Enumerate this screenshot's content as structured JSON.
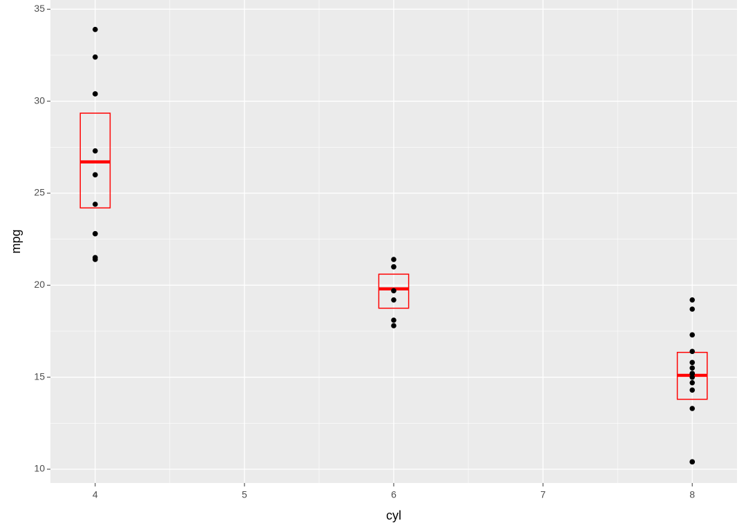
{
  "chart_data": {
    "type": "scatter",
    "x_label": "cyl",
    "y_label": "mpg",
    "xlim": [
      3.7,
      8.3
    ],
    "ylim": [
      9.25,
      35.5
    ],
    "xticks": [
      4,
      5,
      6,
      7,
      8
    ],
    "yticks": [
      10,
      15,
      20,
      25,
      30,
      35
    ],
    "xminor": [
      4.5,
      5.5,
      6.5,
      7.5
    ],
    "yminor": [
      12.5,
      17.5,
      22.5,
      27.5,
      32.5
    ],
    "grid": true,
    "points": {
      "color": "#000000",
      "x": [
        4,
        4,
        4,
        4,
        4,
        4,
        4,
        4,
        4,
        4,
        4,
        6,
        6,
        6,
        6,
        6,
        6,
        6,
        8,
        8,
        8,
        8,
        8,
        8,
        8,
        8,
        8,
        8,
        8,
        8,
        8,
        8
      ],
      "y": [
        22.8,
        24.4,
        22.8,
        32.4,
        30.4,
        33.9,
        21.5,
        27.3,
        26.0,
        30.4,
        21.4,
        21.0,
        21.0,
        21.4,
        18.1,
        19.2,
        17.8,
        19.7,
        18.7,
        14.3,
        16.4,
        17.3,
        15.2,
        10.4,
        10.4,
        14.7,
        15.5,
        15.2,
        13.3,
        19.2,
        15.8,
        15.0
      ]
    },
    "summary": {
      "color": "#ff0000",
      "x": [
        4,
        6,
        8
      ],
      "ymin": [
        24.2,
        18.75,
        13.8
      ],
      "y": [
        26.7,
        19.8,
        15.1
      ],
      "ymax": [
        29.35,
        20.6,
        16.35
      ]
    }
  }
}
